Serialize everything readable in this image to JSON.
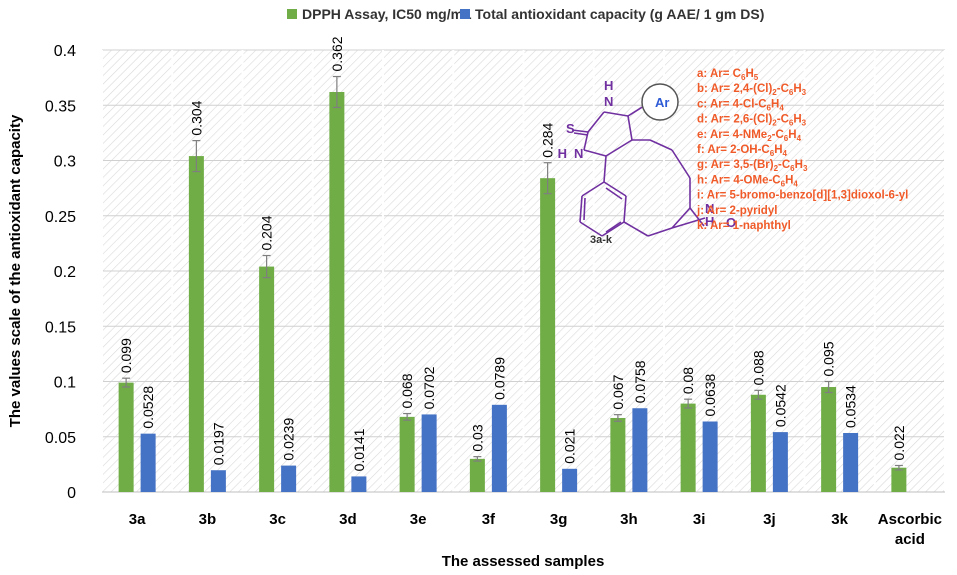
{
  "chart_data": {
    "type": "bar",
    "x_label": "The assessed samples",
    "y_label": "The values scale of the antioxidant capacity",
    "categories": [
      "3a",
      "3b",
      "3c",
      "3d",
      "3e",
      "3f",
      "3g",
      "3h",
      "3i",
      "3j",
      "3k",
      "Ascorbic acid"
    ],
    "series": [
      {
        "name": "DPPH Assay, IC50 mg/mL",
        "color": "#70ad47",
        "values": [
          0.099,
          0.304,
          0.204,
          0.362,
          0.068,
          0.03,
          0.284,
          0.067,
          0.08,
          0.088,
          0.095,
          0.022
        ],
        "errors": [
          0.004,
          0.014,
          0.01,
          0.014,
          0.003,
          0.002,
          0.014,
          0.003,
          0.004,
          0.004,
          0.005,
          0.002
        ]
      },
      {
        "name": "Total antioxidant capacity (g AAE/ 1 gm DS)",
        "color": "#4472c4",
        "values": [
          0.0528,
          0.0197,
          0.0239,
          0.0141,
          0.0702,
          0.0789,
          0.021,
          0.0758,
          0.0638,
          0.0542,
          0.0534,
          null
        ]
      }
    ],
    "ylim": [
      0,
      0.4
    ],
    "yticks": [
      0,
      0.05,
      0.1,
      0.15,
      0.2,
      0.25,
      0.3,
      0.35,
      0.4
    ],
    "grid": true,
    "legend": "top",
    "inset": {
      "structure_labels": [
        "S",
        "H",
        "N",
        "Ar",
        "N",
        "H",
        "N",
        "H",
        "O",
        "3a-k"
      ],
      "substituents": [
        [
          "a: Ar= C",
          "6",
          "H",
          "5"
        ],
        [
          "b: Ar= 2,4-(Cl)",
          "2",
          "-C",
          "6",
          "H",
          "3"
        ],
        [
          "c: Ar= 4-Cl-C",
          "6",
          "H",
          "4"
        ],
        [
          "d: Ar= 2,6-(Cl)",
          "2",
          "-C",
          "6",
          "H",
          "3"
        ],
        [
          "e: Ar= 4-NMe",
          "2",
          "-C",
          "6",
          "H",
          "4"
        ],
        [
          "f: Ar= 2-OH-C",
          "6",
          "H",
          "4"
        ],
        [
          "g: Ar= 3,5-(Br)",
          "2",
          "-C",
          "6",
          "H",
          "3"
        ],
        [
          "h: Ar= 4-OMe-C",
          "6",
          "H",
          "4"
        ],
        [
          "i: Ar= 5-bromo-benzo[d][1,3]dioxol-6-yl"
        ],
        [
          "j: Ar= 2-pyridyl"
        ],
        [
          "k: Ar= 1-naphthyl"
        ]
      ]
    }
  }
}
